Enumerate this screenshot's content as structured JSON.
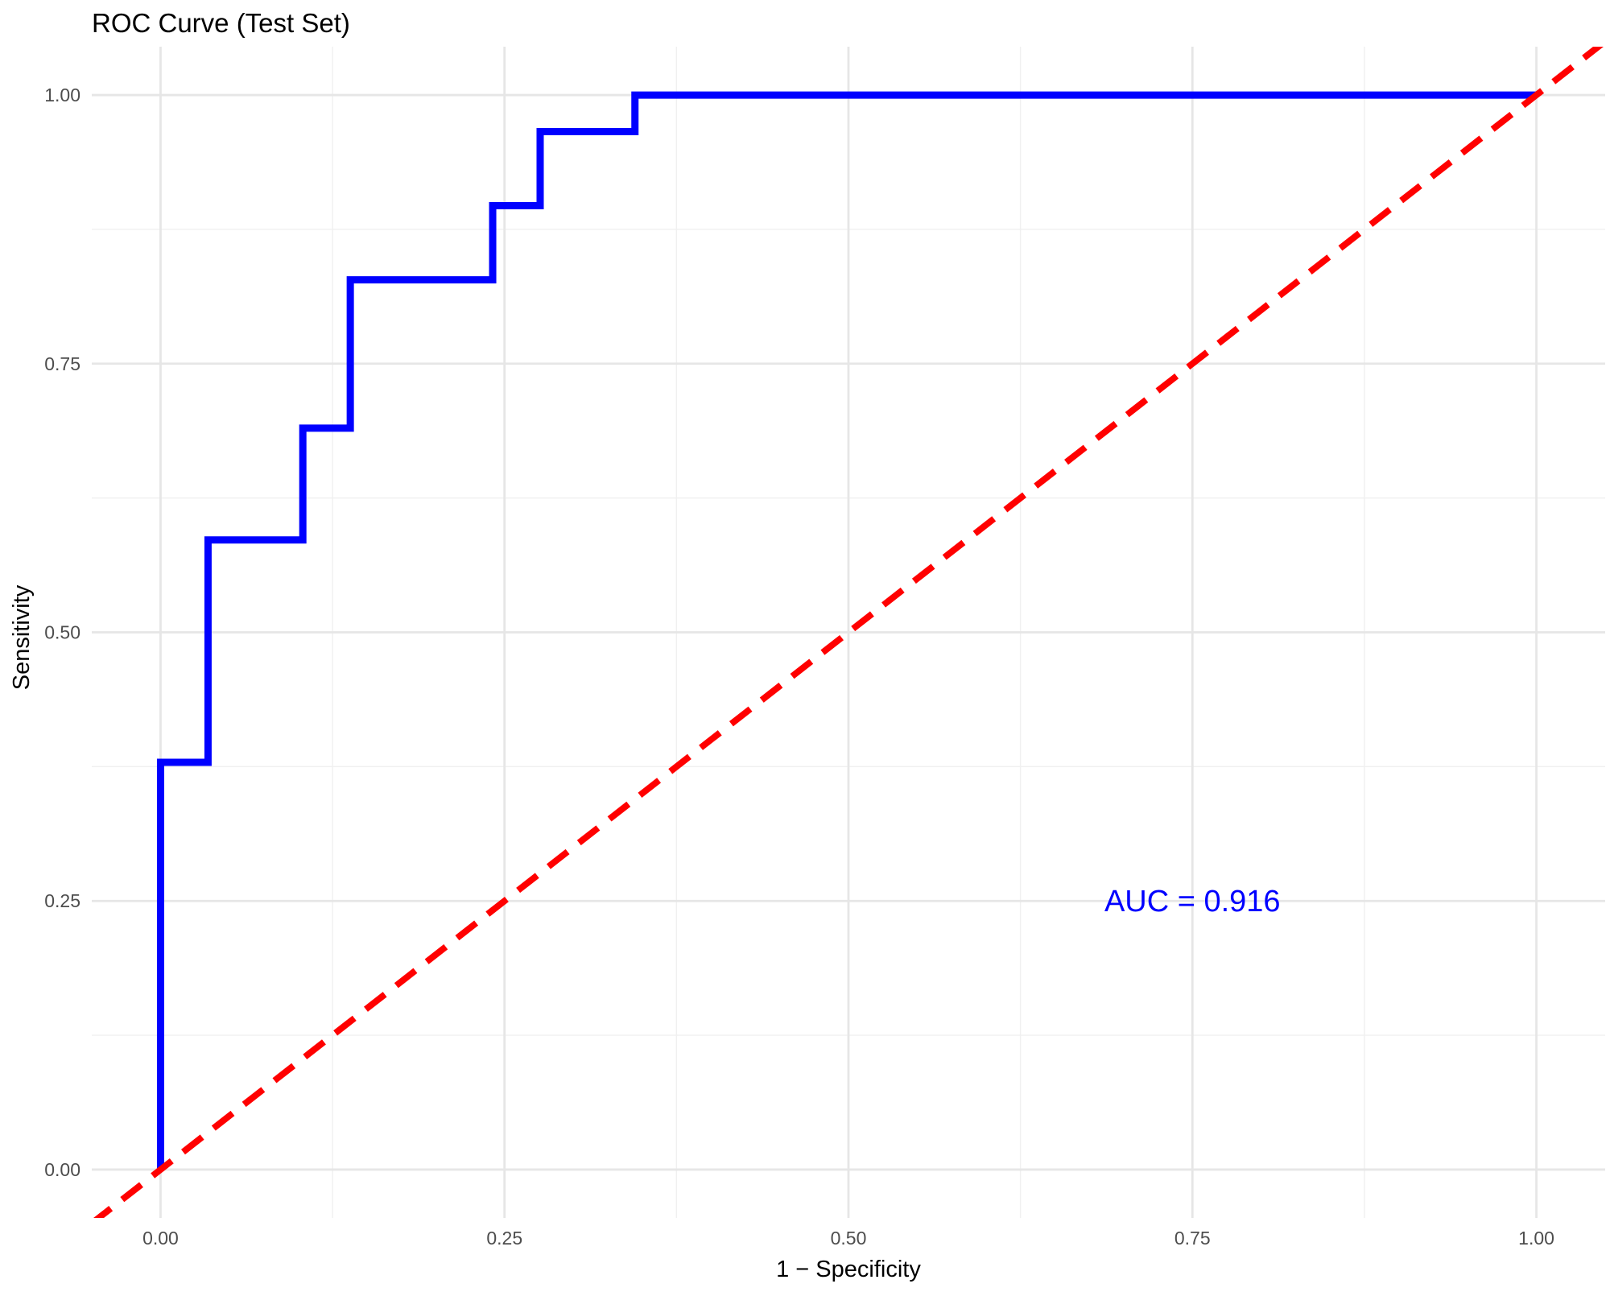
{
  "chart_data": {
    "type": "line",
    "title": "ROC Curve (Test Set)",
    "xlabel": "1 − Specificity",
    "ylabel": "Sensitivity",
    "xlim": [
      -0.05,
      1.05
    ],
    "ylim": [
      -0.045,
      1.045
    ],
    "x_ticks": [
      0.0,
      0.25,
      0.5,
      0.75,
      1.0
    ],
    "x_tick_labels": [
      "0.00",
      "0.25",
      "0.50",
      "0.75",
      "1.00"
    ],
    "y_ticks": [
      0.0,
      0.25,
      0.5,
      0.75,
      1.0
    ],
    "y_tick_labels": [
      "0.00",
      "0.25",
      "0.50",
      "0.75",
      "1.00"
    ],
    "grid": true,
    "legend": "none",
    "series": [
      {
        "color": "#0000ff",
        "style": "step",
        "x": [
          0.0,
          0.0,
          0.0345,
          0.0345,
          0.1034,
          0.1034,
          0.1379,
          0.1379,
          0.2414,
          0.2414,
          0.2759,
          0.2759,
          0.3448,
          0.3448,
          1.0
        ],
        "y": [
          0.0,
          0.379,
          0.379,
          0.586,
          0.586,
          0.69,
          0.69,
          0.828,
          0.828,
          0.897,
          0.897,
          0.966,
          0.966,
          1.0,
          1.0
        ]
      },
      {
        "color": "#ff0000",
        "style": "dashed",
        "x": [
          -0.05,
          1.05
        ],
        "y": [
          -0.05,
          1.05
        ]
      }
    ],
    "annotations": [
      {
        "text": "AUC = 0.916",
        "x": 0.75,
        "y": 0.25,
        "color": "#0000ff"
      }
    ]
  }
}
